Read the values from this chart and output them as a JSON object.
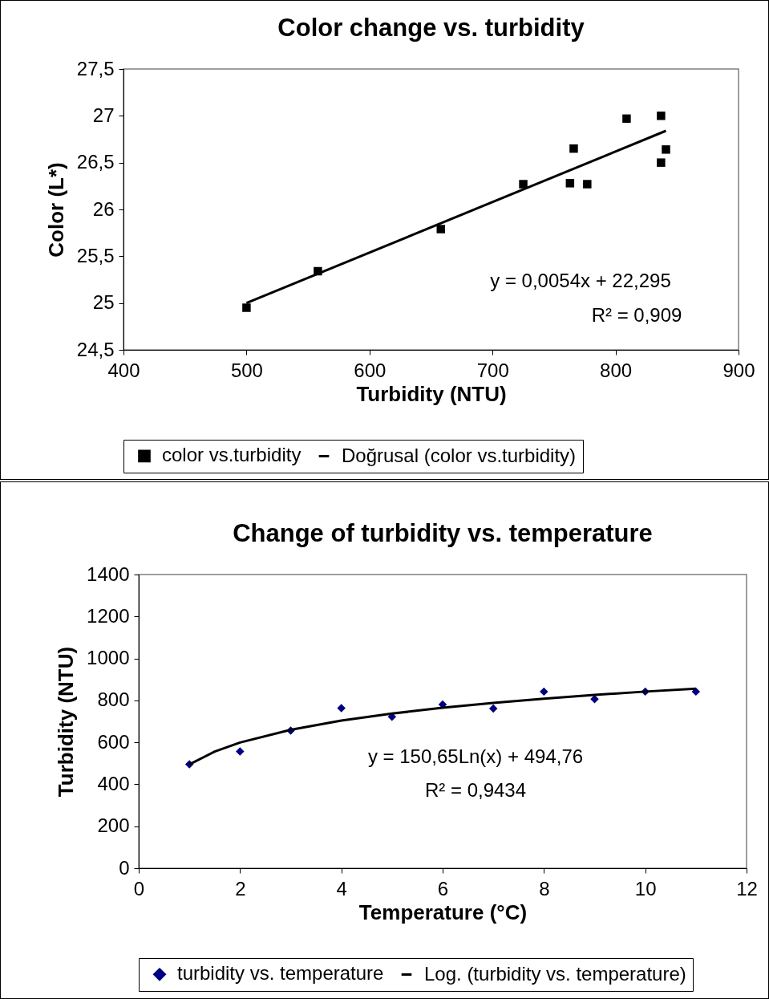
{
  "chart_data": [
    {
      "type": "scatter",
      "title": "Color change vs. turbidity",
      "xlabel": "Turbidity (NTU)",
      "ylabel": "Color (L*)",
      "xlim": [
        400,
        900
      ],
      "xticks": [
        400,
        500,
        600,
        700,
        800,
        900
      ],
      "ylim": [
        24.5,
        27.5
      ],
      "yticks": [
        {
          "value": 24.5,
          "label": "24,5"
        },
        25,
        {
          "value": 25.5,
          "label": "25,5"
        },
        26,
        {
          "value": 26.5,
          "label": "26,5"
        },
        27,
        {
          "value": 27.5,
          "label": "27,5"
        }
      ],
      "grid": false,
      "legend": "bottom",
      "annotations": [
        "y = 0,0054x + 22,295",
        "R² = 0,909"
      ],
      "series": [
        {
          "name": "color vs.turbidity",
          "type": "scatter",
          "marker": "square",
          "color": "#000000",
          "x": [
            500,
            558,
            658,
            725,
            763,
            766,
            777,
            809,
            837,
            837,
            841
          ],
          "values": [
            24.95,
            25.34,
            25.79,
            26.27,
            26.28,
            26.65,
            26.27,
            26.97,
            27.0,
            26.5,
            26.64
          ]
        },
        {
          "name": "Doğrusal (color vs.turbidity)",
          "type": "line",
          "line_style": "solid",
          "marker": "none",
          "color": "#000000",
          "x": [
            500,
            841
          ],
          "values": [
            25.0,
            26.84
          ]
        }
      ]
    },
    {
      "type": "scatter",
      "title": "Change of turbidity vs. temperature",
      "xlabel": "Temperature (°C)",
      "ylabel": "Turbidity (NTU)",
      "xlim": [
        0,
        12
      ],
      "xticks": [
        0,
        2,
        4,
        6,
        8,
        10,
        12
      ],
      "ylim": [
        0,
        1400
      ],
      "yticks": [
        0,
        200,
        400,
        600,
        800,
        1000,
        1200,
        1400
      ],
      "grid": false,
      "legend": "bottom",
      "annotations": [
        "y = 150,65Ln(x) + 494,76",
        "R² = 0,9434"
      ],
      "series": [
        {
          "name": "turbidity vs. temperature",
          "type": "scatter",
          "marker": "diamond",
          "color": "#000080",
          "x": [
            1,
            2,
            3,
            4,
            5,
            6,
            7,
            8,
            9,
            10,
            11
          ],
          "values": [
            495,
            557,
            656,
            763,
            722,
            780,
            761,
            842,
            806,
            842,
            842
          ]
        },
        {
          "name": "Log. (turbidity vs. temperature)",
          "type": "line",
          "line_style": "solid",
          "marker": "none",
          "color": "#000000",
          "x": [
            1,
            1.5,
            2,
            3,
            4,
            5,
            6,
            7,
            8,
            9,
            10,
            11
          ],
          "values": [
            495,
            556,
            599,
            660,
            704,
            737,
            765,
            788,
            808,
            826,
            842,
            856
          ]
        }
      ]
    }
  ]
}
